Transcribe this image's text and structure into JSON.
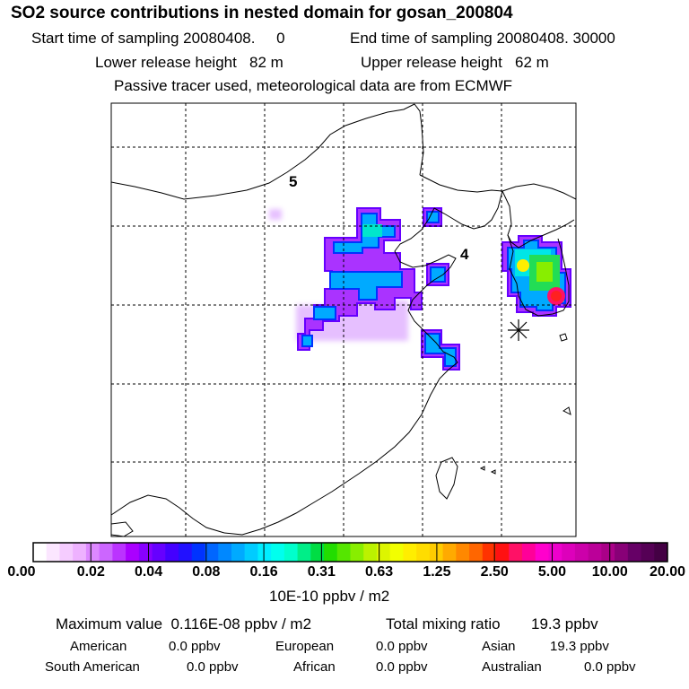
{
  "title": "SO2 source contributions in nested domain for gosan_200804",
  "sampling": {
    "start": "Start time of sampling 20080408.     0",
    "end": "End time of sampling 20080408. 30000"
  },
  "release": {
    "lower": "Lower release height   82 m",
    "upper": "Upper release height   62 m"
  },
  "note": "Passive tracer used, meteorological data are from ECMWF",
  "map": {
    "region_labels": [
      "5",
      "4"
    ],
    "receptor_marker": "asterisk",
    "source_colors": {
      "low": "#cc44ff",
      "mid": "#00aaff",
      "cyan": "#00e6e6",
      "green": "#22dd55",
      "yellow": "#ffee00",
      "red": "#ff2020"
    }
  },
  "colorbar": {
    "tick_labels": [
      "0.00",
      "0.02",
      "0.04",
      "0.08",
      "0.16",
      "0.31",
      "0.63",
      "1.25",
      "2.50",
      "5.00",
      "10.00",
      "20.00"
    ],
    "colors": [
      "#ffffff",
      "#fbe6ff",
      "#f5ccff",
      "#eeb2ff",
      "#dd88ff",
      "#cc66ff",
      "#bb33ff",
      "#aa00ff",
      "#8800ff",
      "#6600ff",
      "#4400ff",
      "#2211ff",
      "#0033ff",
      "#0066ff",
      "#0088ff",
      "#00aaff",
      "#00ccff",
      "#00eeff",
      "#00ffee",
      "#00ffcc",
      "#00ee88",
      "#00dd44",
      "#22dd00",
      "#55e600",
      "#88ee00",
      "#bbf200",
      "#ddf500",
      "#f2ff00",
      "#ffee00",
      "#ffdd00",
      "#ffcc00",
      "#ffaa00",
      "#ff8800",
      "#ff6600",
      "#ff3300",
      "#ff1111",
      "#ff1166",
      "#ff0099",
      "#ff00cc",
      "#ee00cc",
      "#dd00bb",
      "#cc00aa",
      "#bb0099",
      "#aa0088",
      "#880077",
      "#660066",
      "#550055",
      "#440044"
    ],
    "units": "10E-10 ppbv / m2"
  },
  "summary": {
    "max_value": "Maximum value  0.116E-08 ppbv / m2",
    "total_label": "Total mixing ratio",
    "total_value": "19.3 ppbv",
    "regions": [
      {
        "name": "American",
        "value": "0.0 ppbv"
      },
      {
        "name": "European",
        "value": "0.0 ppbv"
      },
      {
        "name": "Asian",
        "value": "19.3 ppbv"
      },
      {
        "name": "South American",
        "value": "0.0 ppbv"
      },
      {
        "name": "African",
        "value": "0.0 ppbv"
      },
      {
        "name": "Australian",
        "value": "0.0 ppbv"
      }
    ]
  }
}
